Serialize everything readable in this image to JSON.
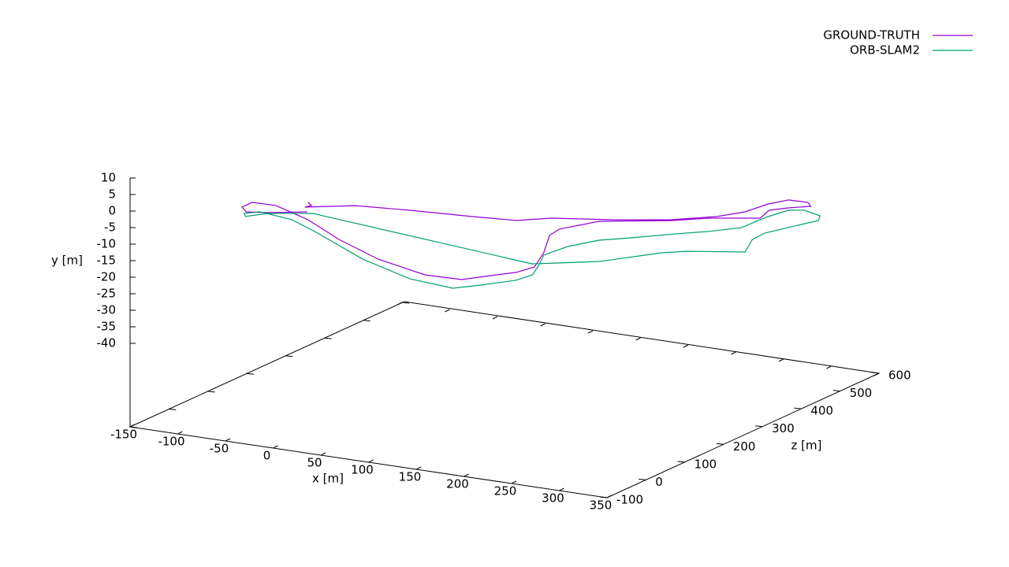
{
  "chart_data": {
    "type": "line3d",
    "xlabel": "x [m]",
    "ylabel": "y [m]",
    "zlabel": "z [m]",
    "xlim": [
      -150,
      350
    ],
    "ylim": [
      -40,
      10
    ],
    "zlim": [
      -100,
      600
    ],
    "xticks": [
      -150,
      -100,
      -50,
      0,
      50,
      100,
      150,
      200,
      250,
      300,
      350
    ],
    "yticks": [
      10,
      5,
      0,
      -5,
      -10,
      -15,
      -20,
      -25,
      -30,
      -35,
      -40
    ],
    "zticks": [
      -100,
      0,
      100,
      200,
      300,
      400,
      500,
      600
    ],
    "legend": "top-right",
    "series": [
      {
        "name": "GROUND-TRUTH",
        "color": "#9400d3",
        "x": [
          -7,
          1,
          -7,
          30,
          70,
          120,
          155,
          173,
          220,
          258,
          284,
          298,
          297,
          306,
          320,
          329,
          308,
          297,
          298,
          258,
          231,
          176,
          158,
          161,
          175,
          181,
          170,
          153,
          128,
          91,
          38,
          -10,
          -46,
          -73,
          -80,
          -68,
          -51,
          -27,
          9
        ],
        "y": [
          3,
          3,
          2,
          2,
          0,
          -2,
          -3,
          -4,
          -5,
          -6,
          -7,
          -7,
          -8,
          -8,
          -9,
          -9,
          -10,
          -10,
          -11,
          -11,
          -11,
          -11,
          -11,
          -11,
          -13,
          -15,
          -16,
          -17,
          -18,
          -18,
          -16,
          -13,
          -9,
          -5,
          -2,
          0,
          1,
          2,
          3
        ],
        "z": [
          7,
          -4,
          -1,
          37,
          80,
          121,
          146,
          192,
          239,
          288,
          346,
          383,
          445,
          475,
          491,
          476,
          469,
          447,
          422,
          390,
          355,
          307,
          249,
          216,
          167,
          128,
          108,
          99,
          71,
          68,
          77,
          94,
          102,
          86,
          42,
          -13,
          -44,
          -48,
          -34
        ]
      },
      {
        "name": "ORB-SLAM2",
        "color": "#009e73",
        "x": [
          -1,
          174,
          223,
          257,
          274,
          316,
          300,
          299,
          302,
          314,
          307,
          290,
          278,
          273,
          272,
          271,
          252,
          231,
          201,
          180,
          166,
          162,
          172,
          170,
          155,
          130,
          113,
          68,
          14,
          -37,
          -53,
          -69,
          -67,
          -55,
          -37,
          -1
        ],
        "y": [
          0,
          -15,
          -15,
          -15,
          -15,
          -16,
          -16,
          -16,
          -17,
          -17,
          -17,
          -16,
          -16,
          -16,
          -16,
          -16,
          -16,
          -16,
          -16,
          -16,
          -16,
          -16,
          -17,
          -19,
          -21,
          -22,
          -22,
          -21,
          -18,
          -12,
          -8,
          -4,
          -2,
          -1,
          0,
          0
        ],
        "z": [
          5,
          140,
          193,
          269,
          291,
          339,
          397,
          432,
          484,
          533,
          554,
          554,
          544,
          504,
          486,
          440,
          404,
          374,
          327,
          297,
          250,
          199,
          159,
          150,
          145,
          116,
          85,
          84,
          96,
          98,
          78,
          35,
          -10,
          -36,
          -23,
          5
        ]
      }
    ]
  }
}
